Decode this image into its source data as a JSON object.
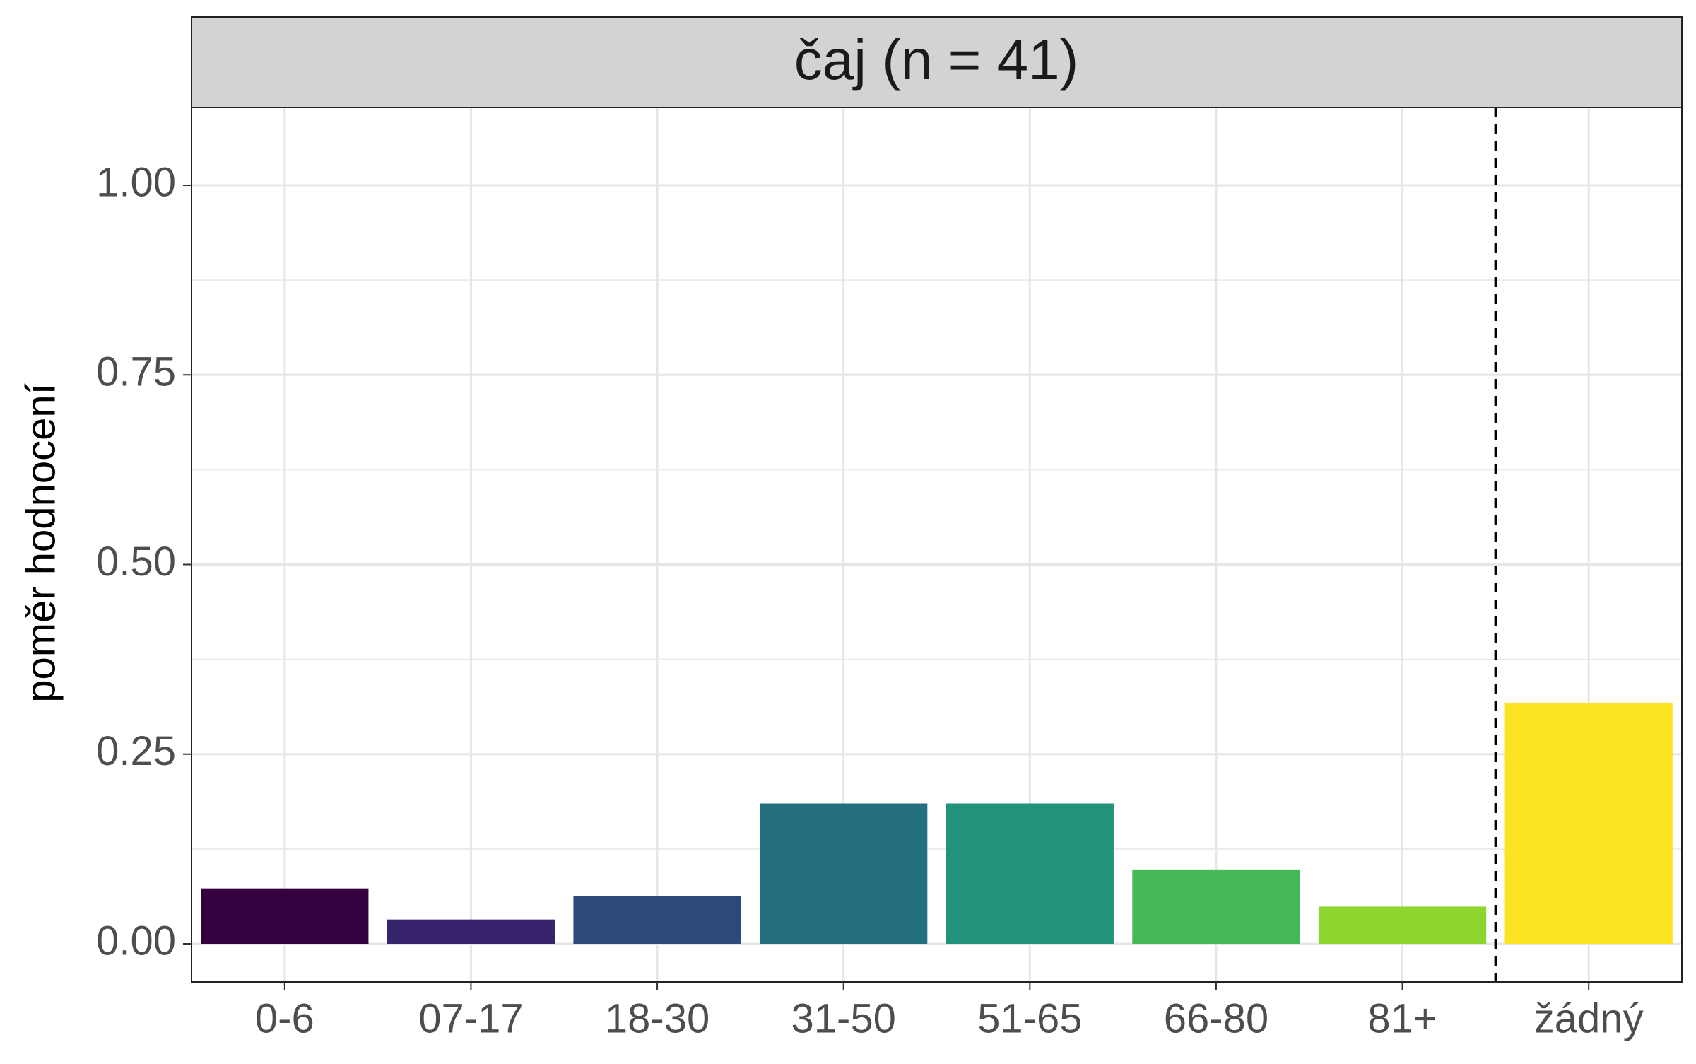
{
  "chart_data": {
    "type": "bar",
    "title": "čaj (n = 41)",
    "xlabel": "",
    "ylabel": "poměr hodnocení",
    "categories": [
      "0-6",
      "07-17",
      "18-30",
      "31-50",
      "51-65",
      "66-80",
      "81+",
      "žádný"
    ],
    "values": [
      0.073,
      0.032,
      0.063,
      0.185,
      0.185,
      0.098,
      0.049,
      0.317
    ],
    "colors": [
      "#35003f",
      "#37246c",
      "#2b4a7b",
      "#236f7d",
      "#22937a",
      "#44b956",
      "#8ed42e",
      "#fbe322"
    ],
    "ylim": [
      -0.05,
      1.1
    ],
    "yticks": [
      0.0,
      0.25,
      0.5,
      0.75,
      1.0
    ],
    "ytick_labels": [
      "0.00",
      "0.25",
      "0.50",
      "0.75",
      "1.00"
    ],
    "grid": true,
    "separator_after_category": "81+",
    "separator_style": "dashed"
  }
}
